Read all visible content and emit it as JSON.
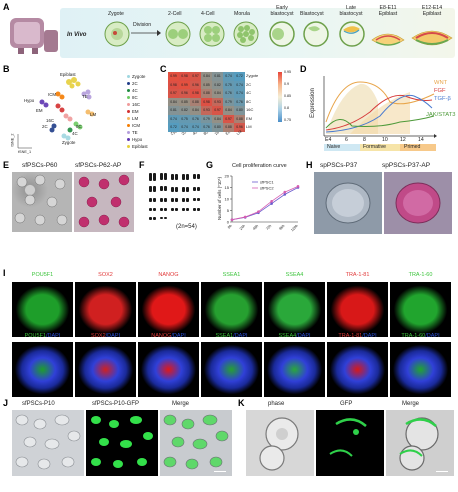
{
  "panels": {
    "A": "A",
    "B": "B",
    "C": "C",
    "D": "D",
    "E": "E",
    "F": "F",
    "G": "G",
    "H": "H",
    "I": "I",
    "J": "J",
    "K": "K"
  },
  "panelA": {
    "in_vivo": "In Vivo",
    "division": "Division",
    "stages": [
      "Zygote",
      "2-Cell",
      "4-Cell",
      "Morula",
      "Early\nblastocyst",
      "Blastocyst",
      "Late\nblastocyst",
      "E8-E11\nEpiblast",
      "E12-E14\nEpiblast"
    ]
  },
  "panelB": {
    "legend": [
      {
        "name": "Zygote",
        "color": "#9fd7e0"
      },
      {
        "name": "2C",
        "color": "#1f3c88"
      },
      {
        "name": "4C",
        "color": "#1d8a3f"
      },
      {
        "name": "8C",
        "color": "#6ecb63"
      },
      {
        "name": "16C",
        "color": "#ef9a9a"
      },
      {
        "name": "EM",
        "color": "#d32f2f"
      },
      {
        "name": "LM",
        "color": "#f4b860"
      },
      {
        "name": "ICM",
        "color": "#f57c00"
      },
      {
        "name": "TE",
        "color": "#b39ddb"
      },
      {
        "name": "Hypo",
        "color": "#5e35b1"
      },
      {
        "name": "Epiblast",
        "color": "#e6cf3a"
      }
    ],
    "cluster_labels": [
      "Epiblast",
      "ICM",
      "TE",
      "LM",
      "EM",
      "16C",
      "8C",
      "4C",
      "2C",
      "Zygote",
      "Hypo"
    ],
    "xaxis": "tSNE_1",
    "yaxis": "tSNE_2"
  },
  "panelC": {
    "rows": [
      "Zygote",
      "2C",
      "4C",
      "8C",
      "16C",
      "EM",
      "LM"
    ],
    "cols": [
      "Zygote",
      "2C",
      "4C",
      "8C",
      "16C",
      "EM",
      "LM"
    ],
    "values": [
      [
        "0.99",
        "0.98",
        "0.97",
        "0.84",
        "0.81",
        "0.74",
        "0.72"
      ],
      [
        "0.98",
        "0.99",
        "0.96",
        "0.85",
        "0.82",
        "0.75",
        "0.74"
      ],
      [
        "0.97",
        "0.96",
        "0.98",
        "0.88",
        "0.84",
        "0.76",
        "0.74"
      ],
      [
        "0.84",
        "0.85",
        "0.88",
        "0.98",
        "0.93",
        "0.79",
        "0.76"
      ],
      [
        "0.81",
        "0.82",
        "0.84",
        "0.93",
        "0.97",
        "0.84",
        "0.80"
      ],
      [
        "0.74",
        "0.75",
        "0.76",
        "0.79",
        "0.84",
        "0.97",
        "0.88"
      ],
      [
        "0.72",
        "0.74",
        "0.74",
        "0.76",
        "0.80",
        "0.88",
        "0.96"
      ]
    ],
    "scale": [
      "0.95",
      "0.9",
      "0.85",
      "0.8",
      "0.75"
    ]
  },
  "panelD": {
    "ylabel": "Expression",
    "ticks": [
      "E4",
      "6",
      "8",
      "10",
      "12",
      "14"
    ],
    "series": [
      "WNT",
      "FGF",
      "TGF-β",
      "JAK/STAT3"
    ],
    "series_colors": [
      "#e8a54a",
      "#d63b3b",
      "#4a7bd0",
      "#4e9a3a"
    ],
    "phases": [
      "Naive",
      "Formative",
      "Primed"
    ]
  },
  "panelE": {
    "left": "sfPSCs-P60",
    "right": "sfPSCs-P62-AP"
  },
  "panelF": {
    "caption": "(2n=54)"
  },
  "panelG": {
    "title": "Cell proliferation curve",
    "ylabel": "Number of cells (*10⁵)",
    "legend": [
      "sfPSC1",
      "sfPSC2"
    ],
    "xticks": [
      "0h",
      "24h",
      "48h",
      "72h",
      "96h",
      "120h"
    ],
    "yticks": [
      "0",
      "5",
      "10",
      "15",
      "20"
    ]
  },
  "chart_data": {
    "type": "line",
    "title": "Cell proliferation curve",
    "ylabel": "Number of cells (*10⁵)",
    "categories": [
      "0h",
      "24h",
      "48h",
      "72h",
      "96h",
      "120h"
    ],
    "series": [
      {
        "name": "sfPSC1",
        "values": [
          1,
          2,
          4,
          8,
          12,
          15
        ]
      },
      {
        "name": "sfPSC2",
        "values": [
          1,
          2.2,
          4.5,
          9,
          13,
          15.5
        ]
      }
    ],
    "ylim": [
      0,
      20
    ]
  },
  "panelH": {
    "left": "spPSCs-P37",
    "right": "spPSCs-P37-AP"
  },
  "panelI": {
    "top": [
      {
        "text": "POU5F1",
        "color": "#3cc43c"
      },
      {
        "text": "SOX2",
        "color": "#e23a3a"
      },
      {
        "text": "NANOG",
        "color": "#e23a3a"
      },
      {
        "text": "SSEA1",
        "color": "#3cc43c"
      },
      {
        "text": "SSEA4",
        "color": "#3cc43c"
      },
      {
        "text": "TRA-1-81",
        "color": "#e23a3a"
      },
      {
        "text": "TRA-1-60",
        "color": "#3cc43c"
      }
    ],
    "bottom": [
      "POU5F1",
      "SOX2",
      "NANOG",
      "SSEA1",
      "SSEA4",
      "TRA-1-81",
      "TRA-1-60"
    ],
    "dapi": "/DAPI"
  },
  "panelJ": {
    "labels": [
      "sfPSCs-P10",
      "sfPSCs-P10-GFP",
      "Merge"
    ]
  },
  "panelK": {
    "labels": [
      "phase",
      "GFP",
      "Merge"
    ]
  }
}
